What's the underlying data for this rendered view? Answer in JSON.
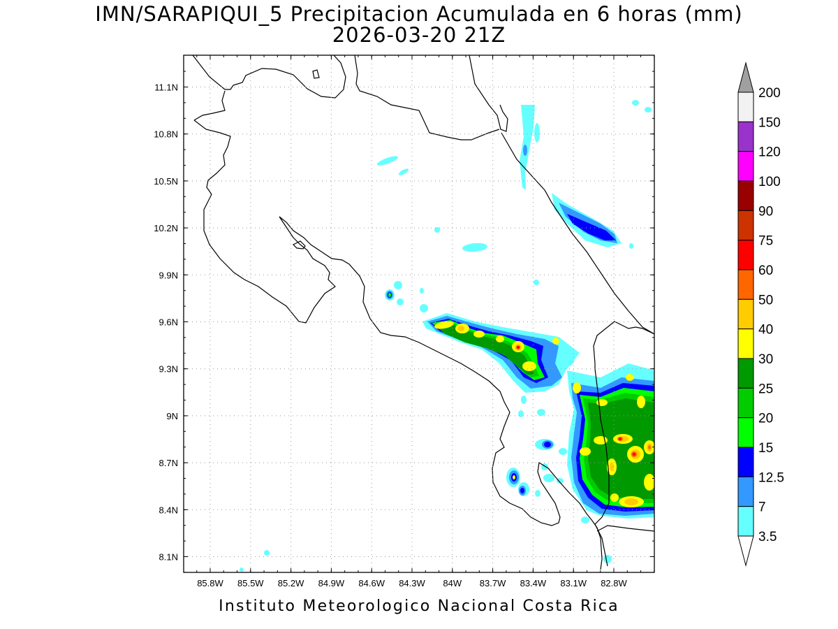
{
  "title_line1": "IMN/SARAPIQUI_5 Precipitacion Acumulada en 6 horas (mm)",
  "title_line2": "2026-03-20 21Z",
  "footer": "Instituto Meteorologico Nacional Costa Rica",
  "map": {
    "lon_range": [
      -86.0,
      -82.55
    ],
    "lat_range": [
      8.0,
      11.2
    ],
    "lat_ticks": [
      "11.1N",
      "10.8N",
      "10.5N",
      "10.2N",
      "9.9N",
      "9.6N",
      "9.3N",
      "9N",
      "8.7N",
      "8.4N",
      "8.1N"
    ],
    "lon_ticks": [
      "85.8W",
      "85.5W",
      "85.2W",
      "84.9W",
      "84.6W",
      "84.3W",
      "84W",
      "83.7W",
      "83.4W",
      "83.1W",
      "82.8W"
    ],
    "grid": "dotted"
  },
  "legend": {
    "labels": [
      "200",
      "150",
      "120",
      "100",
      "90",
      "75",
      "60",
      "50",
      "40",
      "30",
      "25",
      "20",
      "15",
      "12.5",
      "7",
      "3.5"
    ],
    "colors": [
      "#f2f2f2",
      "#9933cc",
      "#ff00ff",
      "#990000",
      "#cc3300",
      "#ff0000",
      "#ff6600",
      "#ffcc00",
      "#ffff00",
      "#009900",
      "#00cc00",
      "#00ff00",
      "#0000ff",
      "#3399ff",
      "#66ffff"
    ],
    "over_color": "#a0a0a0",
    "under_color": "#ffffff"
  }
}
